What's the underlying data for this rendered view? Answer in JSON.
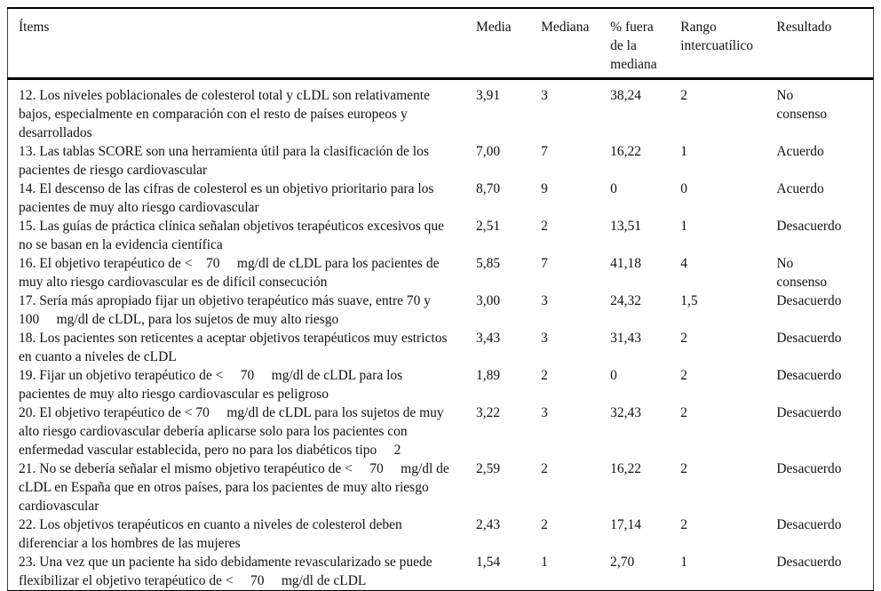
{
  "table": {
    "columns": {
      "items": "Ítems",
      "media": "Media",
      "mediana": "Mediana",
      "pct_fuera": "% fuera de la mediana",
      "rango": "Rango intercuatílico",
      "resultado": "Resultado"
    },
    "rows": [
      {
        "item": "12. Los niveles poblacionales de colesterol total y cLDL son relativamente bajos, especialmente en comparación con el resto de países europeos y desarrollados",
        "media": "3,91",
        "mediana": "3",
        "pct_fuera": "38,24",
        "rango": "2",
        "resultado": "No consenso"
      },
      {
        "item": "13. Las tablas SCORE son una herramienta útil para la clasificación de los pacientes de riesgo cardiovascular",
        "media": "7,00",
        "mediana": "7",
        "pct_fuera": "16,22",
        "rango": "1",
        "resultado": "Acuerdo"
      },
      {
        "item": "14. El descenso de las cifras de colesterol es un objetivo prioritario para los pacientes de muy alto riesgo cardiovascular",
        "media": "8,70",
        "mediana": "9",
        "pct_fuera": "0",
        "rango": "0",
        "resultado": "Acuerdo"
      },
      {
        "item": "15. Las guías de práctica clínica señalan objetivos terapéuticos excesivos que no se basan en la evidencia científica",
        "media": "2,51",
        "mediana": "2",
        "pct_fuera": "13,51",
        "rango": "1",
        "resultado": "Desacuerdo"
      },
      {
        "item": "16. El objetivo terapéutico de <    70     mg/dl de cLDL para los pacientes de muy alto riesgo cardiovascular es de difícil consecución",
        "media": "5,85",
        "mediana": "7",
        "pct_fuera": "41,18",
        "rango": "4",
        "resultado": "No consenso"
      },
      {
        "item": "17. Sería más apropiado fijar un objetivo terapéutico más suave, entre 70 y 100     mg/dl de cLDL, para los sujetos de muy alto riesgo",
        "media": "3,00",
        "mediana": "3",
        "pct_fuera": "24,32",
        "rango": "1,5",
        "resultado": "Desacuerdo"
      },
      {
        "item": "18. Los pacientes son reticentes a aceptar objetivos terapéuticos muy estrictos en cuanto a niveles de cLDL",
        "media": "3,43",
        "mediana": "3",
        "pct_fuera": "31,43",
        "rango": "2",
        "resultado": "Desacuerdo"
      },
      {
        "item": "19. Fijar un objetivo terapéutico de <     70     mg/dl de cLDL para los pacientes de muy alto riesgo cardiovascular es peligroso",
        "media": "1,89",
        "mediana": "2",
        "pct_fuera": "0",
        "rango": "2",
        "resultado": "Desacuerdo"
      },
      {
        "item": "20. El objetivo terapéutico de < 70     mg/dl de cLDL para los sujetos de muy alto riesgo cardiovascular debería aplicarse solo para los pacientes con enfermedad vascular establecida, pero no para los diabéticos tipo     2",
        "media": "3,22",
        "mediana": "3",
        "pct_fuera": "32,43",
        "rango": "2",
        "resultado": "Desacuerdo"
      },
      {
        "item": "21. No se debería señalar el mismo objetivo terapéutico de <     70     mg/dl de cLDL en España que en otros países, para los pacientes de muy alto riesgo cardiovascular",
        "media": "2,59",
        "mediana": "2",
        "pct_fuera": "16,22",
        "rango": "2",
        "resultado": "Desacuerdo"
      },
      {
        "item": "22. Los objetivos terapéuticos en cuanto a niveles de colesterol deben diferenciar a los hombres de las mujeres",
        "media": "2,43",
        "mediana": "2",
        "pct_fuera": "17,14",
        "rango": "2",
        "resultado": "Desacuerdo"
      },
      {
        "item": "23. Una vez que un paciente ha sido debidamente revascularizado se puede flexibilizar el objetivo terapéutico de <     70     mg/dl de cLDL",
        "media": "1,54",
        "mediana": "1",
        "pct_fuera": "2,70",
        "rango": "1",
        "resultado": "Desacuerdo"
      }
    ]
  }
}
